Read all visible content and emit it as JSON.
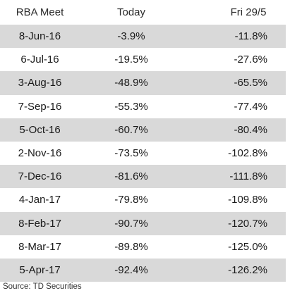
{
  "table": {
    "headers": [
      "RBA Meet",
      "Today",
      "Fri 29/5"
    ],
    "rows": [
      [
        "8-Jun-16",
        "-3.9%",
        "-11.8%"
      ],
      [
        "6-Jul-16",
        "-19.5%",
        "-27.6%"
      ],
      [
        "3-Aug-16",
        "-48.9%",
        "-65.5%"
      ],
      [
        "7-Sep-16",
        "-55.3%",
        "-77.4%"
      ],
      [
        "5-Oct-16",
        "-60.7%",
        "-80.4%"
      ],
      [
        "2-Nov-16",
        "-73.5%",
        "-102.8%"
      ],
      [
        "7-Dec-16",
        "-81.6%",
        "-111.8%"
      ],
      [
        "4-Jan-17",
        "-79.8%",
        "-109.8%"
      ],
      [
        "8-Feb-17",
        "-90.7%",
        "-120.7%"
      ],
      [
        "8-Mar-17",
        "-89.8%",
        "-125.0%"
      ],
      [
        "5-Apr-17",
        "-92.4%",
        "-126.2%"
      ]
    ],
    "shade_color": "#d9d9d9"
  },
  "source": "Source: TD Securities"
}
